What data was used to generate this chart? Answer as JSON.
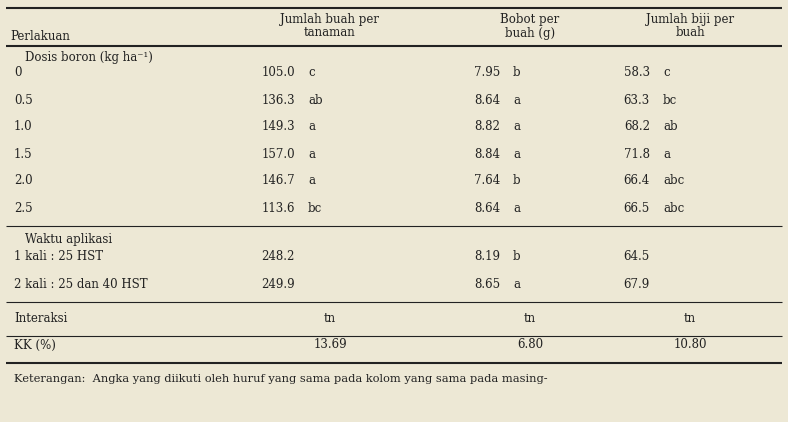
{
  "col_headers": [
    "Perlakuan",
    "Jumlah buah per\ntanaman",
    "Bobot per\nbuah (g)",
    "Jumlah biji per\nbuah"
  ],
  "section1_label": "    Dosis boron (kg ha⁻¹)",
  "section1_rows": [
    [
      "0",
      "105.0",
      "c",
      "7.95",
      "b",
      "58.3",
      "c"
    ],
    [
      "0.5",
      "136.3",
      "ab",
      "8.64",
      "a",
      "63.3",
      "bc"
    ],
    [
      "1.0",
      "149.3",
      "a",
      "8.82",
      "a",
      "68.2",
      "ab"
    ],
    [
      "1.5",
      "157.0",
      "a",
      "8.84",
      "a",
      "71.8",
      "a"
    ],
    [
      "2.0",
      "146.7",
      "a",
      "7.64",
      "b",
      "66.4",
      "abc"
    ],
    [
      "2.5",
      "113.6",
      "bc",
      "8.64",
      "a",
      "66.5",
      "abc"
    ]
  ],
  "section2_label": "    Waktu aplikasi",
  "section2_rows": [
    [
      "1 kali : 25 HST",
      "248.2",
      "",
      "8.19",
      "b",
      "64.5",
      ""
    ],
    [
      "2 kali : 25 dan 40 HST",
      "249.9",
      "",
      "8.65",
      "a",
      "67.9",
      ""
    ]
  ],
  "section3_rows": [
    [
      "Interaksi",
      "tn",
      "tn",
      "tn"
    ],
    [
      "KK (%)",
      "13.69",
      "6.80",
      "10.80"
    ]
  ],
  "footer_label": "Keterangan:",
  "footer_text": "  Angka yang diikuti oleh huruf yang sama pada kolom yang sama pada masing-",
  "bg_color": "#ede8d5",
  "text_color": "#222222",
  "font_size": 8.5
}
